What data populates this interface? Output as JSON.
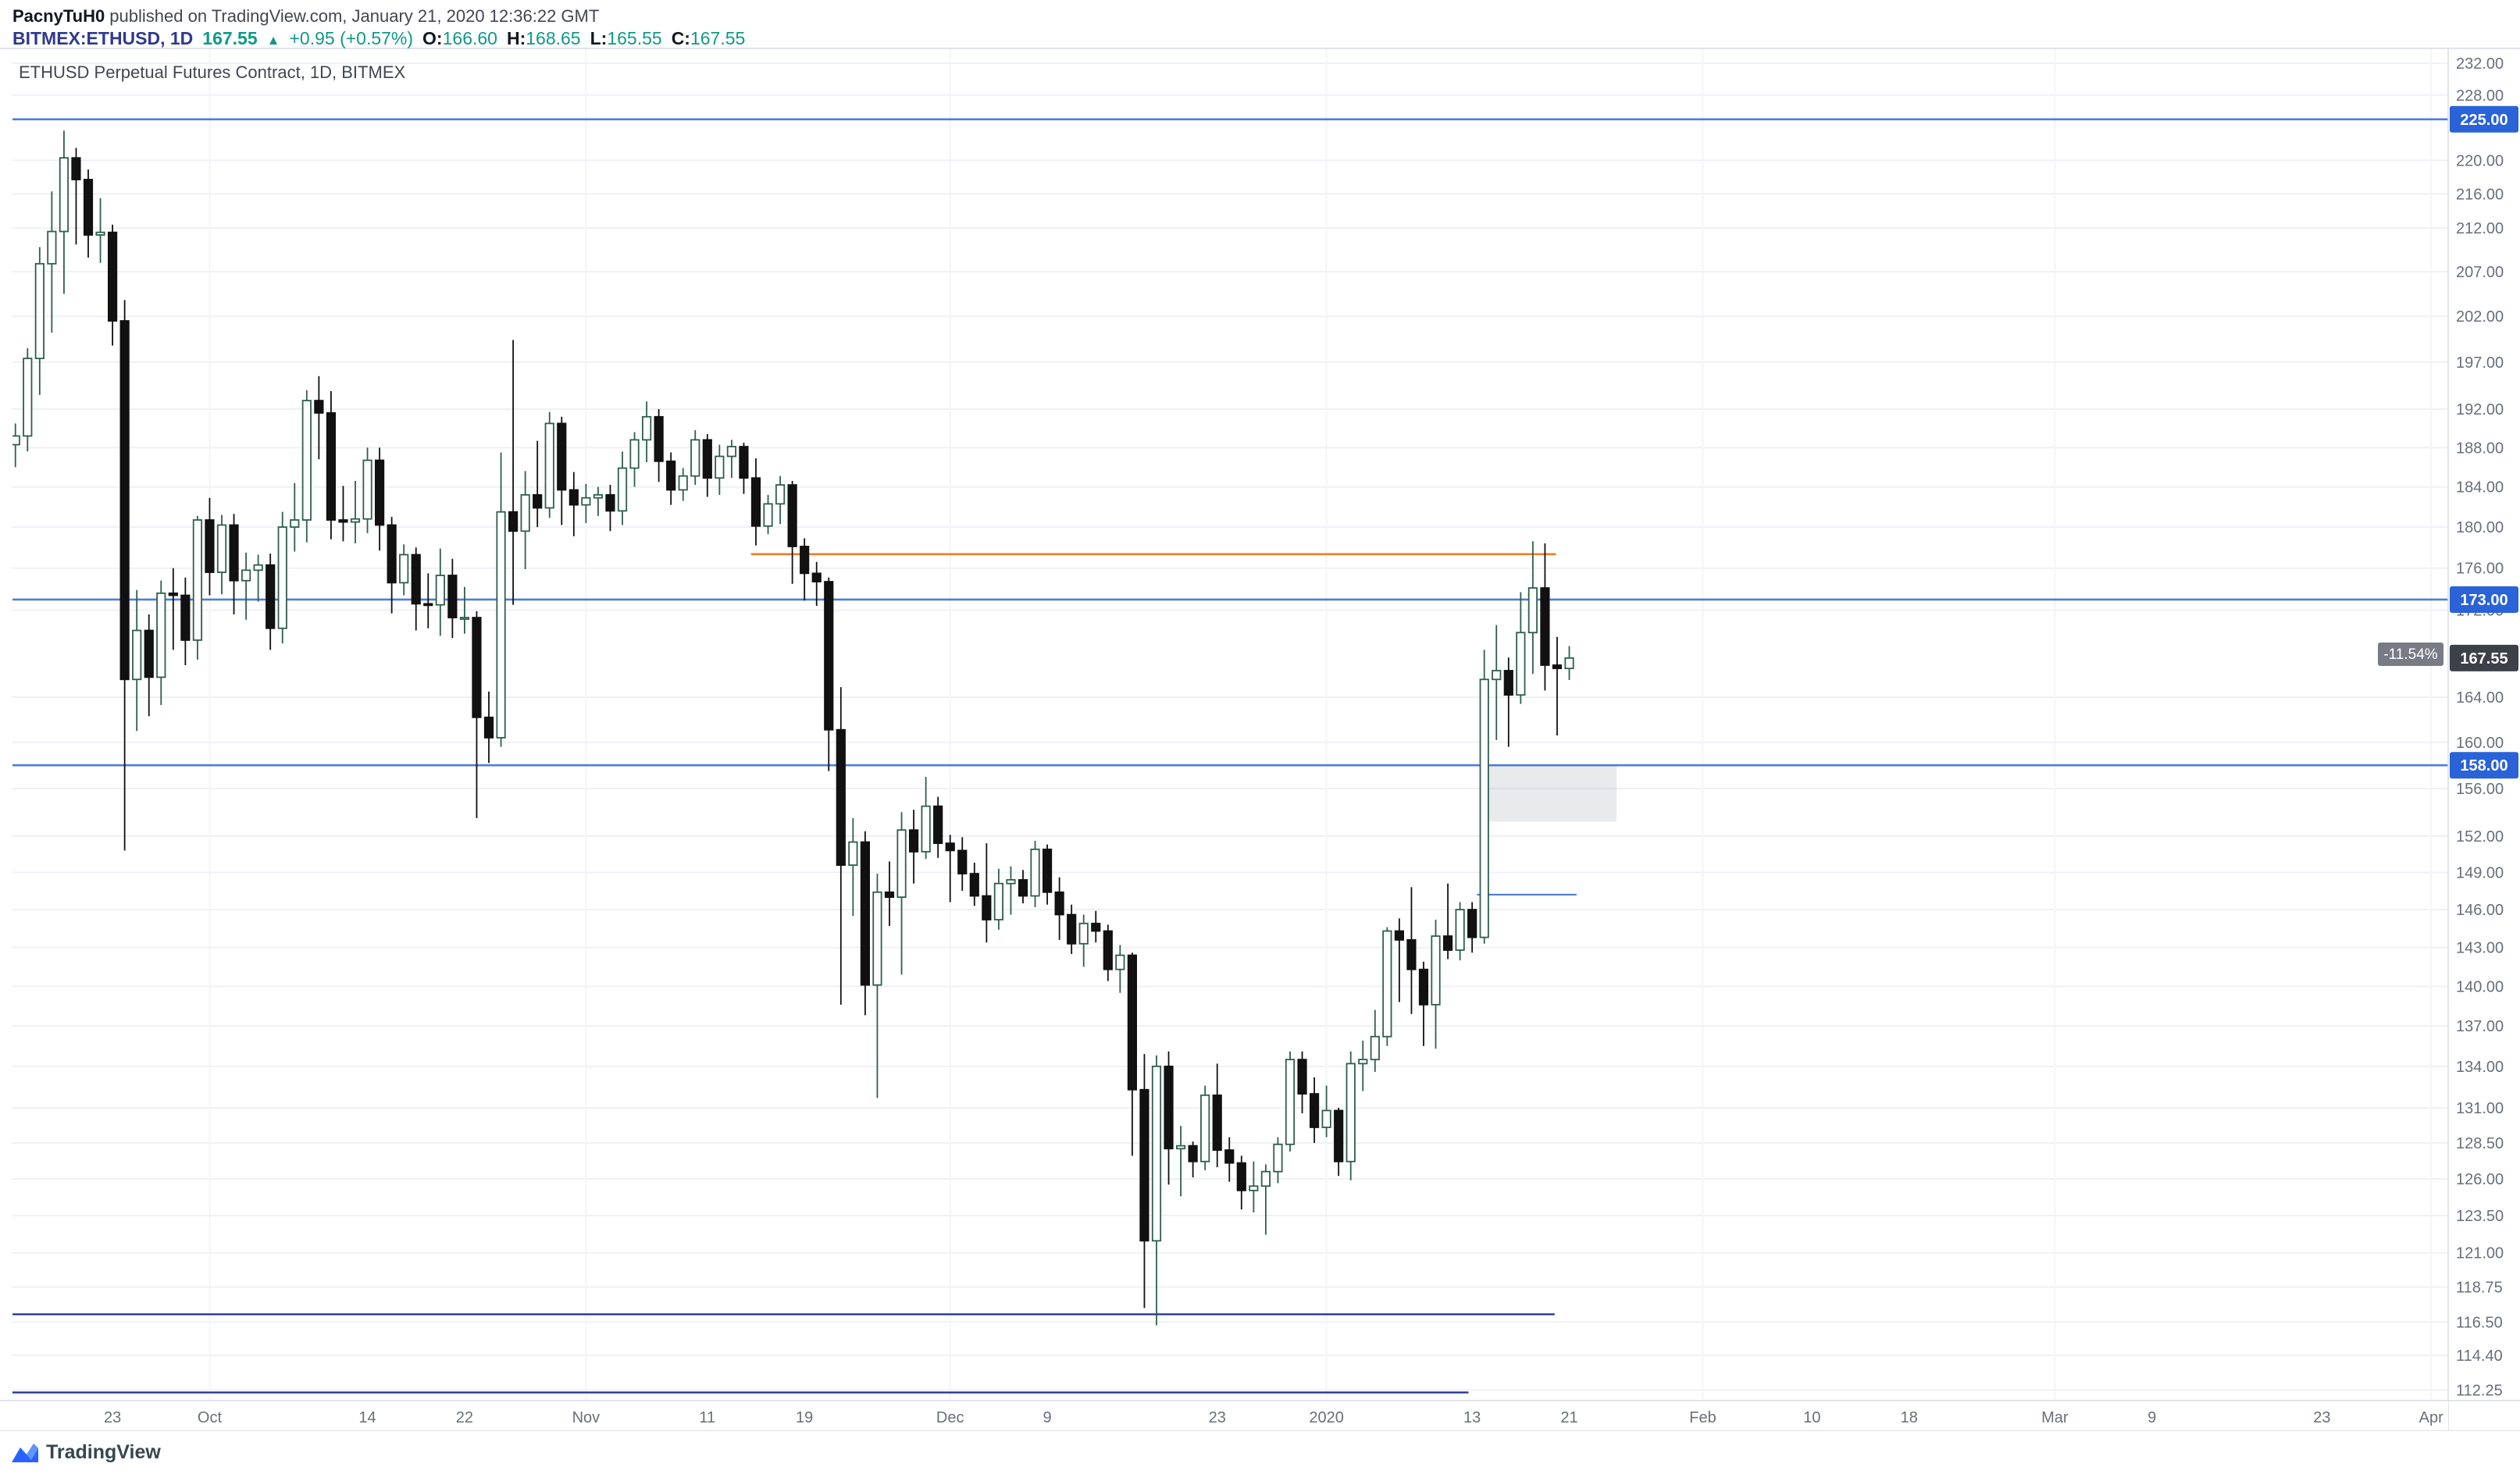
{
  "header": {
    "byline_user": "PacnyTuH0",
    "byline_rest": " published on TradingView.com, January 21, 2020 12:36:22 GMT",
    "symbol": "BITMEX:ETHUSD, 1D",
    "price": "167.55",
    "arrow": "▲",
    "change": "+0.95 (+0.57%)",
    "o_label": "O:",
    "o": "166.60",
    "h_label": "H:",
    "h": "168.65",
    "l_label": "L:",
    "l": "165.55",
    "c_label": "C:",
    "c": "167.55"
  },
  "watermark": "ETHUSD Perpetual Futures Contract, 1D, BITMEX",
  "footer": {
    "brand": "TradingView"
  },
  "theme": {
    "grid": "#eef1f7",
    "grid_v": "#f3f5f9",
    "border": "#d9dce3",
    "axis_text": "#696f7a",
    "accent_blue": "#2962ff",
    "value_green": "#0f9988"
  },
  "chart_data": {
    "type": "candlestick",
    "title": "ETHUSD Perpetual Futures Contract, 1D, BITMEX",
    "symbol": "BITMEX:ETHUSD",
    "interval": "1D",
    "price_scale": {
      "type": "log",
      "top": 233.9,
      "bottom": 111.6
    },
    "day_scale": {
      "min": -0.24,
      "max": 200.4
    },
    "y_axis_labels": [
      "232.00",
      "228.00",
      "220.00",
      "216.00",
      "212.00",
      "207.00",
      "202.00",
      "197.00",
      "192.00",
      "188.00",
      "184.00",
      "180.00",
      "176.00",
      "172.00",
      "164.00",
      "160.00",
      "156.00",
      "152.00",
      "149.00",
      "146.00",
      "143.00",
      "140.00",
      "137.00",
      "134.00",
      "131.00",
      "128.50",
      "126.00",
      "123.50",
      "121.00",
      "118.75",
      "116.50",
      "114.40",
      "112.25"
    ],
    "x_axis_ticks": [
      {
        "d": 8,
        "label": "23"
      },
      {
        "d": 16,
        "label": "Oct"
      },
      {
        "d": 29,
        "label": "14"
      },
      {
        "d": 37,
        "label": "22"
      },
      {
        "d": 47,
        "label": "Nov"
      },
      {
        "d": 57,
        "label": "11"
      },
      {
        "d": 65,
        "label": "19"
      },
      {
        "d": 77,
        "label": "Dec"
      },
      {
        "d": 85,
        "label": "9"
      },
      {
        "d": 99,
        "label": "23"
      },
      {
        "d": 108,
        "label": "2020"
      },
      {
        "d": 120,
        "label": "13"
      },
      {
        "d": 128,
        "label": "21"
      },
      {
        "d": 139,
        "label": "Feb"
      },
      {
        "d": 148,
        "label": "10"
      },
      {
        "d": 156,
        "label": "18"
      },
      {
        "d": 168,
        "label": "Mar"
      },
      {
        "d": 176,
        "label": "9"
      },
      {
        "d": 190,
        "label": "23"
      },
      {
        "d": 199,
        "label": "Apr"
      }
    ],
    "month_gridlines": [
      16,
      47,
      77,
      108,
      139,
      168,
      199
    ],
    "candle_style": {
      "up_fill": "#ffffff",
      "up_stroke": "#2e5f4e",
      "down_fill": "#111111",
      "down_stroke": "#111111"
    },
    "candles": [
      [
        188.3,
        190.5,
        186.0,
        189.2
      ],
      [
        189.2,
        198.5,
        187.6,
        197.4
      ],
      [
        197.4,
        209.8,
        193.5,
        207.9
      ],
      [
        207.9,
        216.3,
        200.2,
        211.6
      ],
      [
        211.6,
        223.6,
        204.5,
        220.3
      ],
      [
        220.3,
        221.5,
        210.1,
        217.7
      ],
      [
        217.7,
        218.9,
        208.6,
        211.2
      ],
      [
        211.2,
        215.5,
        208.0,
        211.5
      ],
      [
        211.5,
        212.4,
        198.8,
        201.5
      ],
      [
        201.5,
        203.8,
        150.8,
        165.6
      ],
      [
        165.6,
        173.9,
        161.0,
        170.1
      ],
      [
        170.1,
        171.6,
        162.3,
        165.8
      ],
      [
        165.8,
        174.8,
        163.3,
        173.6
      ],
      [
        173.6,
        176.0,
        168.3,
        173.4
      ],
      [
        173.4,
        175.1,
        166.9,
        169.2
      ],
      [
        169.2,
        181.1,
        167.4,
        180.7
      ],
      [
        180.7,
        182.9,
        173.4,
        175.6
      ],
      [
        175.6,
        181.2,
        173.5,
        180.2
      ],
      [
        180.2,
        181.3,
        171.6,
        174.8
      ],
      [
        174.8,
        177.5,
        171.1,
        175.8
      ],
      [
        175.8,
        177.3,
        172.8,
        176.3
      ],
      [
        176.3,
        177.4,
        168.3,
        170.3
      ],
      [
        170.3,
        181.5,
        168.9,
        180.0
      ],
      [
        180.0,
        184.4,
        177.6,
        180.7
      ],
      [
        180.7,
        194.0,
        178.5,
        192.9
      ],
      [
        192.9,
        195.5,
        186.8,
        191.6
      ],
      [
        191.6,
        193.9,
        178.8,
        180.7
      ],
      [
        180.7,
        184.1,
        178.6,
        180.5
      ],
      [
        180.5,
        184.6,
        178.4,
        180.8
      ],
      [
        180.8,
        188.0,
        179.4,
        186.7
      ],
      [
        186.7,
        188.0,
        177.7,
        180.2
      ],
      [
        180.2,
        181.0,
        171.7,
        174.6
      ],
      [
        174.6,
        178.3,
        173.4,
        177.3
      ],
      [
        177.3,
        178.0,
        170.1,
        172.6
      ],
      [
        172.6,
        175.5,
        170.3,
        172.5
      ],
      [
        172.5,
        177.9,
        169.6,
        175.3
      ],
      [
        175.3,
        176.9,
        169.4,
        171.3
      ],
      [
        171.3,
        174.2,
        169.8,
        171.3
      ],
      [
        171.3,
        171.9,
        153.5,
        162.2
      ],
      [
        162.2,
        164.5,
        158.2,
        160.4
      ],
      [
        160.4,
        187.5,
        159.6,
        181.5
      ],
      [
        181.5,
        199.4,
        172.5,
        179.6
      ],
      [
        179.6,
        185.6,
        175.9,
        183.2
      ],
      [
        183.2,
        188.7,
        180.0,
        181.9
      ],
      [
        181.9,
        191.7,
        180.9,
        190.5
      ],
      [
        190.5,
        191.2,
        180.2,
        183.7
      ],
      [
        183.7,
        185.5,
        179.1,
        182.2
      ],
      [
        182.2,
        184.3,
        180.4,
        182.9
      ],
      [
        182.9,
        184.0,
        181.1,
        183.2
      ],
      [
        183.2,
        184.2,
        179.6,
        181.6
      ],
      [
        181.6,
        187.6,
        180.2,
        185.9
      ],
      [
        185.9,
        189.6,
        184.0,
        188.8
      ],
      [
        188.8,
        192.8,
        186.5,
        191.2
      ],
      [
        191.2,
        192.0,
        184.5,
        186.6
      ],
      [
        186.6,
        187.5,
        182.2,
        183.7
      ],
      [
        183.7,
        185.9,
        182.6,
        185.1
      ],
      [
        185.1,
        189.8,
        184.2,
        188.8
      ],
      [
        188.8,
        189.4,
        183.0,
        184.9
      ],
      [
        184.9,
        188.3,
        183.2,
        187.1
      ],
      [
        187.1,
        188.8,
        184.9,
        188.1
      ],
      [
        188.1,
        188.5,
        183.3,
        184.9
      ],
      [
        184.9,
        186.9,
        178.2,
        180.1
      ],
      [
        180.1,
        183.2,
        179.3,
        182.3
      ],
      [
        182.3,
        185.1,
        180.3,
        184.2
      ],
      [
        184.2,
        184.6,
        174.5,
        178.1
      ],
      [
        178.1,
        178.9,
        172.9,
        175.5
      ],
      [
        175.5,
        176.6,
        172.4,
        174.7
      ],
      [
        174.7,
        175.1,
        157.5,
        161.1
      ],
      [
        161.1,
        164.9,
        138.6,
        149.6
      ],
      [
        149.6,
        153.5,
        145.5,
        151.5
      ],
      [
        151.5,
        152.4,
        137.8,
        140.1
      ],
      [
        140.1,
        148.9,
        131.7,
        147.4
      ],
      [
        147.4,
        149.9,
        144.7,
        147.0
      ],
      [
        147.0,
        154.0,
        140.9,
        152.5
      ],
      [
        152.5,
        154.2,
        148.1,
        150.7
      ],
      [
        150.7,
        157.0,
        150.1,
        154.5
      ],
      [
        154.5,
        155.3,
        150.2,
        151.4
      ],
      [
        151.4,
        152.1,
        146.6,
        150.8
      ],
      [
        150.8,
        151.9,
        147.5,
        148.9
      ],
      [
        148.9,
        149.8,
        146.3,
        147.1
      ],
      [
        147.1,
        151.4,
        143.4,
        145.2
      ],
      [
        145.2,
        149.3,
        144.4,
        148.1
      ],
      [
        148.1,
        149.5,
        145.6,
        148.4
      ],
      [
        148.4,
        149.2,
        146.5,
        147.1
      ],
      [
        147.1,
        151.6,
        146.2,
        150.9
      ],
      [
        150.9,
        151.3,
        146.4,
        147.4
      ],
      [
        147.4,
        148.6,
        143.6,
        145.6
      ],
      [
        145.6,
        146.4,
        142.5,
        143.3
      ],
      [
        143.3,
        145.6,
        141.5,
        144.9
      ],
      [
        144.9,
        145.9,
        143.4,
        144.3
      ],
      [
        144.3,
        144.8,
        140.4,
        141.3
      ],
      [
        141.3,
        143.2,
        139.5,
        142.4
      ],
      [
        142.4,
        142.6,
        127.6,
        132.3
      ],
      [
        132.3,
        134.9,
        117.4,
        121.8
      ],
      [
        121.8,
        134.8,
        116.3,
        134.0
      ],
      [
        134.0,
        135.1,
        125.6,
        128.1
      ],
      [
        128.1,
        129.7,
        124.8,
        128.3
      ],
      [
        128.3,
        128.6,
        126.1,
        127.2
      ],
      [
        127.2,
        132.6,
        126.6,
        131.9
      ],
      [
        131.9,
        134.2,
        126.8,
        128.0
      ],
      [
        128.0,
        128.9,
        125.8,
        127.1
      ],
      [
        127.1,
        127.6,
        123.9,
        125.2
      ],
      [
        125.2,
        127.2,
        123.7,
        125.5
      ],
      [
        125.5,
        127.0,
        122.2,
        126.5
      ],
      [
        126.5,
        128.9,
        125.7,
        128.4
      ],
      [
        128.4,
        135.1,
        127.9,
        134.5
      ],
      [
        134.5,
        135.1,
        130.6,
        132.0
      ],
      [
        132.0,
        133.2,
        128.5,
        129.6
      ],
      [
        129.6,
        132.6,
        128.9,
        130.8
      ],
      [
        130.8,
        131.0,
        126.2,
        127.2
      ],
      [
        127.2,
        135.1,
        125.9,
        134.2
      ],
      [
        134.2,
        135.9,
        132.2,
        134.5
      ],
      [
        134.5,
        138.2,
        133.6,
        136.2
      ],
      [
        136.2,
        144.6,
        135.5,
        144.3
      ],
      [
        144.3,
        145.3,
        138.8,
        143.6
      ],
      [
        143.6,
        147.8,
        137.9,
        141.3
      ],
      [
        141.3,
        141.9,
        135.5,
        138.6
      ],
      [
        138.6,
        145.2,
        135.3,
        143.9
      ],
      [
        143.9,
        148.1,
        142.1,
        142.8
      ],
      [
        142.8,
        146.6,
        142.0,
        146.0
      ],
      [
        146.0,
        146.6,
        142.6,
        143.8
      ],
      [
        143.8,
        168.3,
        143.3,
        165.6
      ],
      [
        165.6,
        170.6,
        160.2,
        166.4
      ],
      [
        166.4,
        167.6,
        159.6,
        164.2
      ],
      [
        164.2,
        173.7,
        163.4,
        169.9
      ],
      [
        169.9,
        178.6,
        166.1,
        174.1
      ],
      [
        174.1,
        178.4,
        164.6,
        166.9
      ],
      [
        166.9,
        169.5,
        160.6,
        166.6
      ],
      [
        166.6,
        168.65,
        165.55,
        167.55
      ]
    ],
    "overlays": {
      "hlines": [
        {
          "price": 225.0,
          "label": "225.00",
          "color": "#4d7cdb",
          "badge": "#2a62d8"
        },
        {
          "price": 173.0,
          "label": "173.00",
          "color": "#4d7cdb",
          "badge": "#2a62d8"
        },
        {
          "price": 158.0,
          "label": "158.00",
          "color": "#4d7cdb",
          "badge": "#2a62d8"
        }
      ],
      "segments": [
        {
          "name": "resistance-line-orange",
          "price": 177.35,
          "d1": 60.6,
          "d2": 126.9,
          "color": "#ef7d22",
          "width": 2.6
        },
        {
          "name": "support-line-blue-147",
          "price": 147.2,
          "d1": 120.4,
          "d2": 128.6,
          "color": "#4d7cdb",
          "width": 2.2
        },
        {
          "name": "support-line-navy-117",
          "price": 117.0,
          "d1": -0.3,
          "d2": 126.8,
          "color": "#283593",
          "width": 2.4
        },
        {
          "name": "support-line-navy-112",
          "price": 112.1,
          "d1": -0.3,
          "d2": 119.7,
          "color": "#283593",
          "width": 2.4
        }
      ],
      "box": {
        "price_top": 158.0,
        "price_bottom": 153.2,
        "d1": 121.2,
        "d2": 131.9,
        "fill": "rgba(135,140,148,0.18)"
      },
      "range_label": {
        "text": "-11.54%",
        "price": 167.9,
        "bg": "#787b86",
        "fg": "#ffffff"
      }
    },
    "last_price": {
      "text": "167.55",
      "value": 167.55,
      "bg": "#3c4049",
      "fg": "#ffffff"
    }
  }
}
